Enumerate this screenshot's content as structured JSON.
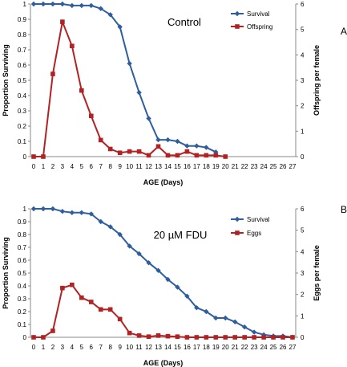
{
  "chart_data": [
    {
      "type": "line",
      "panel_label": "A",
      "title": "Control",
      "xlabel": "AGE (Days)",
      "ylabel": "Proportion Surviving",
      "y2label": "Offspring per female",
      "x": [
        0,
        1,
        2,
        3,
        4,
        5,
        6,
        7,
        8,
        9,
        10,
        11,
        12,
        13,
        14,
        15,
        16,
        17,
        18,
        19,
        20,
        21,
        22,
        23,
        24,
        25,
        26,
        27
      ],
      "ylim": [
        0,
        1
      ],
      "y_ticks": [
        "0",
        "0.1",
        "0.2",
        "0.3",
        "0.4",
        "0.5",
        "0.6",
        "0.7",
        "0.8",
        "0.9",
        "1"
      ],
      "y2lim": [
        0,
        6
      ],
      "y2_ticks": [
        "0",
        "1",
        "2",
        "3",
        "4",
        "5",
        "6"
      ],
      "legend_position": "top-right",
      "series": [
        {
          "name": "Survival",
          "axis": "left",
          "color": "#2e5e9e",
          "marker": "diamond",
          "x": [
            0,
            1,
            2,
            3,
            4,
            5,
            6,
            7,
            8,
            9,
            10,
            11,
            12,
            13,
            14,
            15,
            16,
            17,
            18,
            19
          ],
          "values": [
            1.0,
            1.0,
            1.0,
            1.0,
            0.99,
            0.99,
            0.99,
            0.97,
            0.93,
            0.85,
            0.61,
            0.42,
            0.25,
            0.11,
            0.11,
            0.1,
            0.07,
            0.07,
            0.06,
            0.03
          ]
        },
        {
          "name": "Offspring",
          "axis": "right",
          "color": "#b22222",
          "marker": "square",
          "x": [
            0,
            1,
            2,
            3,
            4,
            5,
            6,
            7,
            8,
            9,
            10,
            11,
            12,
            13,
            14,
            15,
            16,
            17,
            18,
            19,
            20
          ],
          "values": [
            0,
            0,
            3.25,
            5.3,
            4.35,
            2.6,
            1.6,
            0.65,
            0.3,
            0.15,
            0.2,
            0.2,
            0.05,
            0.4,
            0.05,
            0.05,
            0.2,
            0.05,
            0.05,
            0.05,
            0.0
          ]
        }
      ]
    },
    {
      "type": "line",
      "panel_label": "B",
      "title": "20 µM FDU",
      "xlabel": "AGE (Days)",
      "ylabel": "Proportion Surviving",
      "y2label": "Eggs per female",
      "x": [
        0,
        1,
        2,
        3,
        4,
        5,
        6,
        7,
        8,
        9,
        10,
        11,
        12,
        13,
        14,
        15,
        16,
        17,
        18,
        19,
        20,
        21,
        22,
        23,
        24,
        25,
        26,
        27
      ],
      "ylim": [
        0,
        1
      ],
      "y_ticks": [
        "0",
        "0.1",
        "0.2",
        "0.3",
        "0.4",
        "0.5",
        "0.6",
        "0.7",
        "0.8",
        "0.9",
        "1"
      ],
      "y2lim": [
        0,
        6
      ],
      "y2_ticks": [
        "0",
        "1",
        "2",
        "3",
        "4",
        "5",
        "6"
      ],
      "legend_position": "top-right",
      "series": [
        {
          "name": "Survival",
          "axis": "left",
          "color": "#2e5e9e",
          "marker": "diamond",
          "x": [
            0,
            1,
            2,
            3,
            4,
            5,
            6,
            7,
            8,
            9,
            10,
            11,
            12,
            13,
            14,
            15,
            16,
            17,
            18,
            19,
            20,
            21,
            22,
            23,
            24,
            25,
            26,
            27
          ],
          "values": [
            1.0,
            1.0,
            1.0,
            0.98,
            0.97,
            0.97,
            0.96,
            0.9,
            0.86,
            0.8,
            0.71,
            0.65,
            0.58,
            0.52,
            0.45,
            0.39,
            0.32,
            0.23,
            0.2,
            0.15,
            0.15,
            0.12,
            0.08,
            0.04,
            0.02,
            0.01,
            0.01,
            0.0
          ]
        },
        {
          "name": "Eggs",
          "axis": "right",
          "color": "#b22222",
          "marker": "square",
          "x": [
            0,
            1,
            2,
            3,
            4,
            5,
            6,
            7,
            8,
            9,
            10,
            11,
            12,
            13,
            14,
            15,
            16,
            17,
            18,
            19,
            20,
            21,
            22,
            23,
            24,
            25,
            26,
            27
          ],
          "values": [
            0,
            0,
            0.3,
            2.3,
            2.45,
            1.85,
            1.65,
            1.3,
            1.3,
            0.85,
            0.2,
            0.08,
            0.03,
            0.08,
            0.05,
            0.03,
            0.0,
            0.0,
            0.0,
            0.0,
            0.0,
            0.0,
            0.0,
            0.0,
            0.0,
            0.0,
            0.0,
            0.0
          ]
        }
      ]
    }
  ]
}
